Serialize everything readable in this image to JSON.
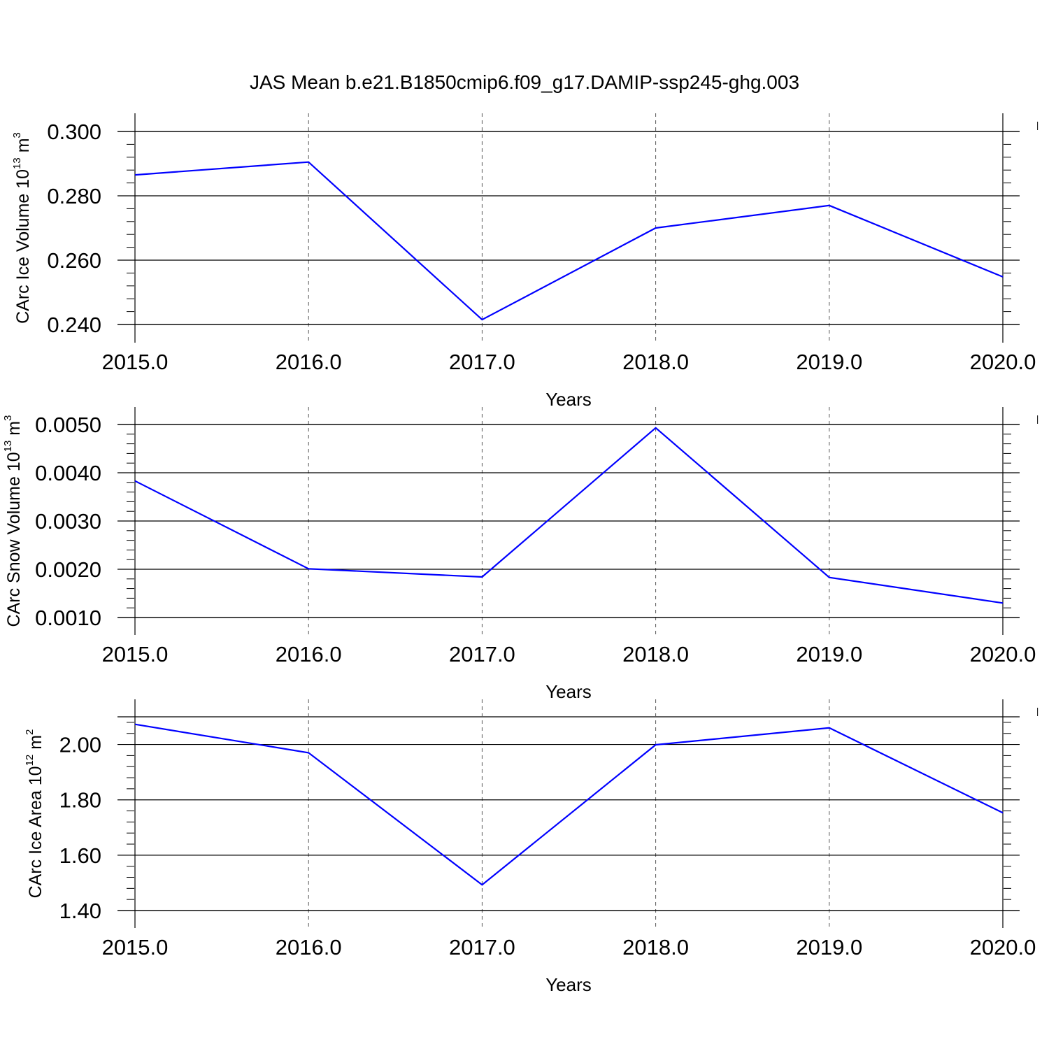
{
  "title": "JAS Mean b.e21.B1850cmip6.f09_g17.DAMIP-ssp245-ghg.003",
  "line_color": "#0000ff",
  "chart_data": [
    {
      "type": "line",
      "x": [
        2015.0,
        2016.0,
        2017.0,
        2018.0,
        2019.0,
        2020.0
      ],
      "xlim": [
        2015.0,
        2020.1
      ],
      "xtick_labels": [
        "2015.0",
        "2016.0",
        "2017.0",
        "2018.0",
        "2019.0",
        "2020.0"
      ],
      "xlabel": "Years",
      "ylabel": "CArc Ice Volume 10",
      "ylabel_exponent": "13",
      "ylabel_unit": " m",
      "ylabel_unit_exponent": "3",
      "ylim": [
        0.24,
        0.3
      ],
      "yticks": [
        0.24,
        0.26,
        0.28,
        0.3
      ],
      "ytick_labels": [
        "0.240",
        "0.260",
        "0.280",
        "0.300"
      ],
      "series": [
        {
          "values": [
            0.2865,
            0.2905,
            0.2415,
            0.27,
            0.277,
            0.2548
          ]
        }
      ]
    },
    {
      "type": "line",
      "x": [
        2015.0,
        2016.0,
        2017.0,
        2018.0,
        2019.0,
        2020.0
      ],
      "xlim": [
        2015.0,
        2020.1
      ],
      "xtick_labels": [
        "2015.0",
        "2016.0",
        "2017.0",
        "2018.0",
        "2019.0",
        "2020.0"
      ],
      "xlabel": "Years",
      "ylabel": "CArc Snow Volume 10",
      "ylabel_exponent": "13",
      "ylabel_unit": " m",
      "ylabel_unit_exponent": "3",
      "ylim": [
        0.001,
        0.005
      ],
      "yticks": [
        0.001,
        0.002,
        0.003,
        0.004,
        0.005
      ],
      "ytick_labels": [
        "0.0010",
        "0.0020",
        "0.0030",
        "0.0040",
        "0.0050"
      ],
      "series": [
        {
          "values": [
            0.00383,
            0.00201,
            0.00184,
            0.00493,
            0.00183,
            0.0013
          ]
        }
      ]
    },
    {
      "type": "line",
      "x": [
        2015.0,
        2016.0,
        2017.0,
        2018.0,
        2019.0,
        2020.0
      ],
      "xlim": [
        2015.0,
        2020.1
      ],
      "xtick_labels": [
        "2015.0",
        "2016.0",
        "2017.0",
        "2018.0",
        "2019.0",
        "2020.0"
      ],
      "xlabel": "Years",
      "ylabel": "CArc Ice Area 10",
      "ylabel_exponent": "12",
      "ylabel_unit": " m",
      "ylabel_unit_exponent": "2",
      "ylim": [
        1.4,
        2.1
      ],
      "yticks": [
        1.4,
        1.6,
        1.8,
        2.0
      ],
      "ytick_labels": [
        "1.40",
        "1.60",
        "1.80",
        "2.00"
      ],
      "series": [
        {
          "values": [
            2.073,
            1.97,
            1.493,
            1.999,
            2.06,
            1.753
          ]
        }
      ]
    }
  ]
}
